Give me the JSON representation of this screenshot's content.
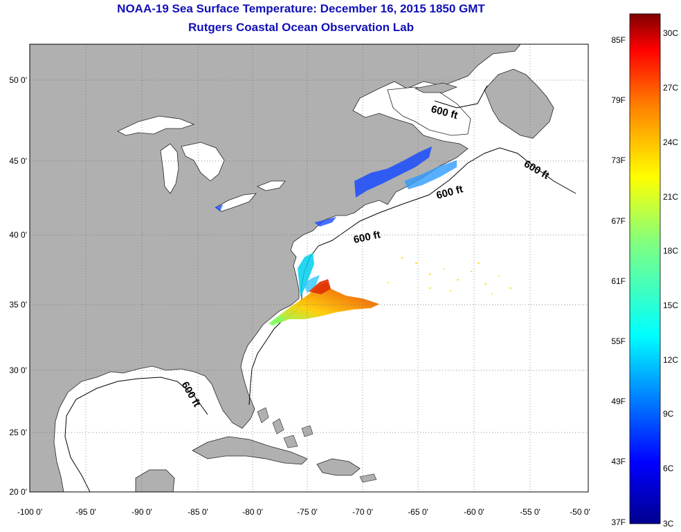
{
  "title": {
    "line1": "NOAA-19 Sea Surface Temperature:  December 16, 2015 1850 GMT",
    "line2": "Rutgers Coastal Ocean Observation Lab"
  },
  "map": {
    "lon_ticks": [
      "-100 0'",
      "-95 0'",
      "-90 0'",
      "-85 0'",
      "-80 0'",
      "-75 0'",
      "-70 0'",
      "-65 0'",
      "-60 0'",
      "-55 0'",
      "-50 0'"
    ],
    "lat_ticks": [
      "50 0'",
      "45 0'",
      "40 0'",
      "35 0'",
      "30 0'",
      "25 0'",
      "20 0'"
    ],
    "contour_label": "600 ft",
    "land_color": "#b0b0b0",
    "ocean_color": "#ffffff",
    "grid": true
  },
  "colorbar": {
    "fahrenheit_labels": [
      "85F",
      "79F",
      "73F",
      "67F",
      "61F",
      "55F",
      "49F",
      "43F",
      "37F"
    ],
    "celsius_labels": [
      "30C",
      "27C",
      "24C",
      "21C",
      "18C",
      "15C",
      "12C",
      "9C",
      "6C",
      "3C"
    ],
    "colors": [
      "#7f0000",
      "#ff0000",
      "#ff8000",
      "#ffff00",
      "#80ff80",
      "#00ffff",
      "#0080ff",
      "#0000ff",
      "#00008f"
    ]
  }
}
